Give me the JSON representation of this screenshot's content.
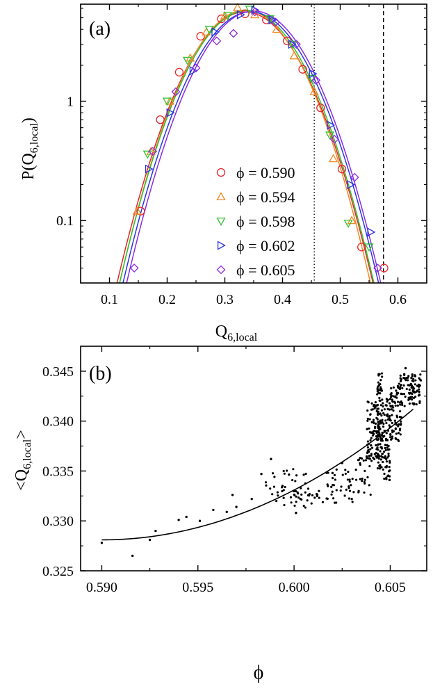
{
  "chart_data": [
    {
      "panel_label": "(a)",
      "type": "scatter",
      "xlabel": "Q",
      "xlabel_sub": "6,local",
      "ylabel": "P(Q",
      "ylabel_sub": "6,local",
      "ylabel_tail": ")",
      "xlim": [
        0.05,
        0.65
      ],
      "ylim": [
        0.03,
        6.5
      ],
      "y_scale": "log",
      "x_ticks": [
        0.1,
        0.2,
        0.3,
        0.4,
        0.5,
        0.6
      ],
      "x_tick_labels": [
        "0.1",
        "0.2",
        "0.3",
        "0.4",
        "0.5",
        "0.6"
      ],
      "y_ticks": [
        0.1,
        1
      ],
      "y_tick_labels": [
        "0.1",
        "1"
      ],
      "legend_position": "bottom-center",
      "vertical_lines": [
        {
          "x": 0.455,
          "style": "dotted"
        },
        {
          "x": 0.575,
          "style": "dashed"
        }
      ],
      "series": [
        {
          "name": "ϕ = 0.590",
          "marker": "circle",
          "color": "#e8262b",
          "fit": {
            "mu": 0.335,
            "sigma": 0.0686,
            "amp": 5.6
          },
          "x": [
            0.154,
            0.188,
            0.221,
            0.258,
            0.294,
            0.335,
            0.372,
            0.408,
            0.435,
            0.466,
            0.503,
            0.537,
            0.576
          ],
          "y": [
            0.12,
            0.7,
            1.75,
            3.5,
            4.9,
            5.4,
            4.8,
            3.2,
            1.85,
            0.88,
            0.27,
            0.06,
            0.04
          ]
        },
        {
          "name": "ϕ = 0.594",
          "marker": "triangle-up",
          "color": "#f08a24",
          "fit": {
            "mu": 0.335,
            "sigma": 0.067,
            "amp": 5.8
          },
          "x": [
            0.148,
            0.172,
            0.205,
            0.24,
            0.268,
            0.3,
            0.322,
            0.352,
            0.39,
            0.42,
            0.455,
            0.488,
            0.52
          ],
          "y": [
            0.12,
            0.38,
            1.0,
            2.3,
            3.8,
            5.2,
            6.1,
            5.3,
            4.0,
            2.4,
            1.2,
            0.33,
            0.1
          ]
        },
        {
          "name": "ϕ = 0.598",
          "marker": "triangle-down",
          "color": "#2ec22e",
          "fit": {
            "mu": 0.338,
            "sigma": 0.068,
            "amp": 5.75
          },
          "x": [
            0.166,
            0.2,
            0.235,
            0.273,
            0.305,
            0.343,
            0.378,
            0.418,
            0.45,
            0.482,
            0.514,
            0.55
          ],
          "y": [
            0.36,
            1.0,
            2.2,
            4.0,
            5.2,
            5.9,
            4.9,
            3.0,
            1.55,
            0.52,
            0.095,
            0.06
          ]
        },
        {
          "name": "ϕ = 0.602",
          "marker": "triangle-right",
          "color": "#2a35e0",
          "fit": {
            "mu": 0.345,
            "sigma": 0.0685,
            "amp": 5.6
          },
          "x": [
            0.168,
            0.205,
            0.245,
            0.283,
            0.327,
            0.352,
            0.382,
            0.416,
            0.452,
            0.483,
            0.518,
            0.553
          ],
          "y": [
            0.27,
            0.8,
            1.8,
            3.8,
            5.3,
            5.8,
            4.8,
            3.0,
            1.7,
            0.63,
            0.2,
            0.08
          ]
        },
        {
          "name": "ϕ = 0.605",
          "marker": "diamond",
          "color": "#8a2be2",
          "fit": {
            "mu": 0.35,
            "sigma": 0.068,
            "amp": 5.7
          },
          "x": [
            0.143,
            0.175,
            0.215,
            0.25,
            0.286,
            0.315,
            0.352,
            0.388,
            0.424,
            0.458,
            0.49,
            0.525,
            0.565
          ],
          "y": [
            0.04,
            0.38,
            1.2,
            1.9,
            3.2,
            3.7,
            5.6,
            4.6,
            3.0,
            1.5,
            0.48,
            0.23,
            0.04
          ]
        }
      ]
    },
    {
      "panel_label": "(b)",
      "type": "scatter",
      "xlabel": "ϕ",
      "ylabel": "<Q",
      "ylabel_sub": "6,local",
      "ylabel_tail": ">",
      "xlim": [
        0.5889,
        0.6069
      ],
      "ylim": [
        0.325,
        0.3475
      ],
      "x_ticks": [
        0.59,
        0.595,
        0.6,
        0.605
      ],
      "x_tick_labels": [
        "0.590",
        "0.595",
        "0.600",
        "0.605"
      ],
      "y_ticks": [
        0.325,
        0.33,
        0.335,
        0.34,
        0.345
      ],
      "y_tick_labels": [
        "0.325",
        "0.330",
        "0.335",
        "0.340",
        "0.345"
      ],
      "fit_curve": {
        "x0": 0.59,
        "y0": 0.3281,
        "y1": 0.3412,
        "x1": 0.6062,
        "power": 2
      },
      "points_summary": [
        {
          "x": 0.59,
          "y": 0.3278
        },
        {
          "x": 0.5916,
          "y": 0.3265
        },
        {
          "x": 0.5925,
          "y": 0.3281
        },
        {
          "x": 0.5928,
          "y": 0.329
        },
        {
          "x": 0.594,
          "y": 0.3301
        },
        {
          "x": 0.5944,
          "y": 0.3304
        },
        {
          "x": 0.5951,
          "y": 0.33
        },
        {
          "x": 0.5958,
          "y": 0.3311
        },
        {
          "x": 0.5965,
          "y": 0.3309
        },
        {
          "x": 0.5968,
          "y": 0.3326
        },
        {
          "x": 0.597,
          "y": 0.3314
        },
        {
          "x": 0.5978,
          "y": 0.3322
        },
        {
          "x": 0.5983,
          "y": 0.3347
        },
        {
          "x": 0.5988,
          "y": 0.3362
        },
        {
          "x": 0.5994,
          "y": 0.3335
        },
        {
          "x": 0.6001,
          "y": 0.3308
        },
        {
          "x": 0.6012,
          "y": 0.3325
        },
        {
          "x": 0.602,
          "y": 0.3348
        },
        {
          "x": 0.6025,
          "y": 0.3358
        },
        {
          "x": 0.603,
          "y": 0.3322
        },
        {
          "x": 0.6038,
          "y": 0.3392
        },
        {
          "x": 0.6044,
          "y": 0.3447
        },
        {
          "x": 0.6048,
          "y": 0.3342
        },
        {
          "x": 0.6054,
          "y": 0.3428
        },
        {
          "x": 0.6058,
          "y": 0.3453
        },
        {
          "x": 0.6063,
          "y": 0.3445
        }
      ]
    }
  ]
}
